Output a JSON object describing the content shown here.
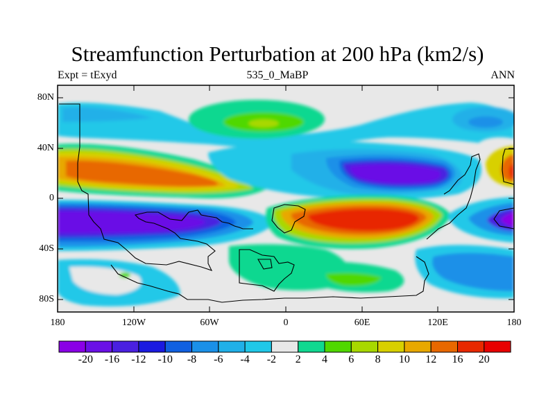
{
  "title": "Streamfunction Perturbation at 200 hPa (km2/s)",
  "subtitle_left": "Expt = tExyd",
  "subtitle_center": "535_0_MaBP",
  "subtitle_right": "ANN",
  "lat_labels": [
    "80N",
    "40N",
    "0",
    "40S",
    "80S"
  ],
  "lon_labels": [
    "180",
    "120W",
    "60W",
    "0",
    "60E",
    "120E",
    "180"
  ],
  "colorbar": {
    "colors": [
      "#8a00e6",
      "#6a10e6",
      "#4a20e0",
      "#1a1ae0",
      "#1060e0",
      "#1a90e8",
      "#20b0e8",
      "#20c8e8",
      "#e8e8e8",
      "#10d890",
      "#50d800",
      "#a8d800",
      "#d8d000",
      "#e8a800",
      "#e86800",
      "#e82800",
      "#e80000"
    ],
    "labels": [
      "-20",
      "-16",
      "-12",
      "-10",
      "-8",
      "-6",
      "-4",
      "-2",
      "2",
      "4",
      "6",
      "8",
      "10",
      "12",
      "16",
      "20"
    ]
  }
}
